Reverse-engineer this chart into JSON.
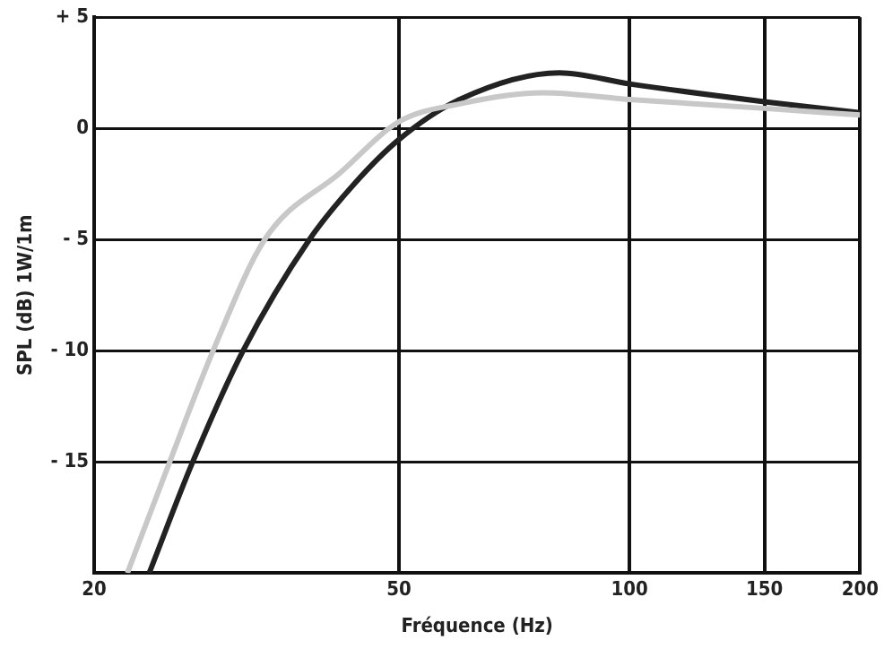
{
  "chart_data": {
    "type": "line",
    "xlabel": "Fréquence (Hz)",
    "ylabel": "SPL (dB) 1W/1m",
    "log": "x",
    "grid": true,
    "marker": "none",
    "line_style": "solid",
    "xlim": [
      20,
      200
    ],
    "xticks": [
      20,
      50,
      100,
      150,
      200
    ],
    "ylim": [
      -20,
      5
    ],
    "yticks": [
      {
        "value": -20,
        "label": null
      },
      {
        "value": -15,
        "label": "- 15"
      },
      {
        "value": -10,
        "label": "- 10"
      },
      {
        "value": -5,
        "label": "- 5"
      },
      0,
      {
        "value": 5,
        "label": "+ 5"
      }
    ],
    "series": [
      {
        "color": "#c8c8c8",
        "x": [
          22.1,
          25.1,
          28.6,
          33.4,
          41.9,
          50,
          60,
          77,
          100,
          150,
          200
        ],
        "values": [
          -20,
          -15,
          -10,
          -5,
          -2,
          0.3,
          1.1,
          1.6,
          1.3,
          0.9,
          0.6
        ]
      },
      {
        "color": "#222222",
        "x": [
          23.6,
          26.9,
          31.3,
          38.2,
          43.7,
          50,
          60,
          81,
          100,
          150,
          200
        ],
        "values": [
          -20,
          -15,
          -10,
          -5,
          -2.5,
          -0.5,
          1.3,
          2.5,
          2.0,
          1.2,
          0.7
        ]
      }
    ]
  }
}
